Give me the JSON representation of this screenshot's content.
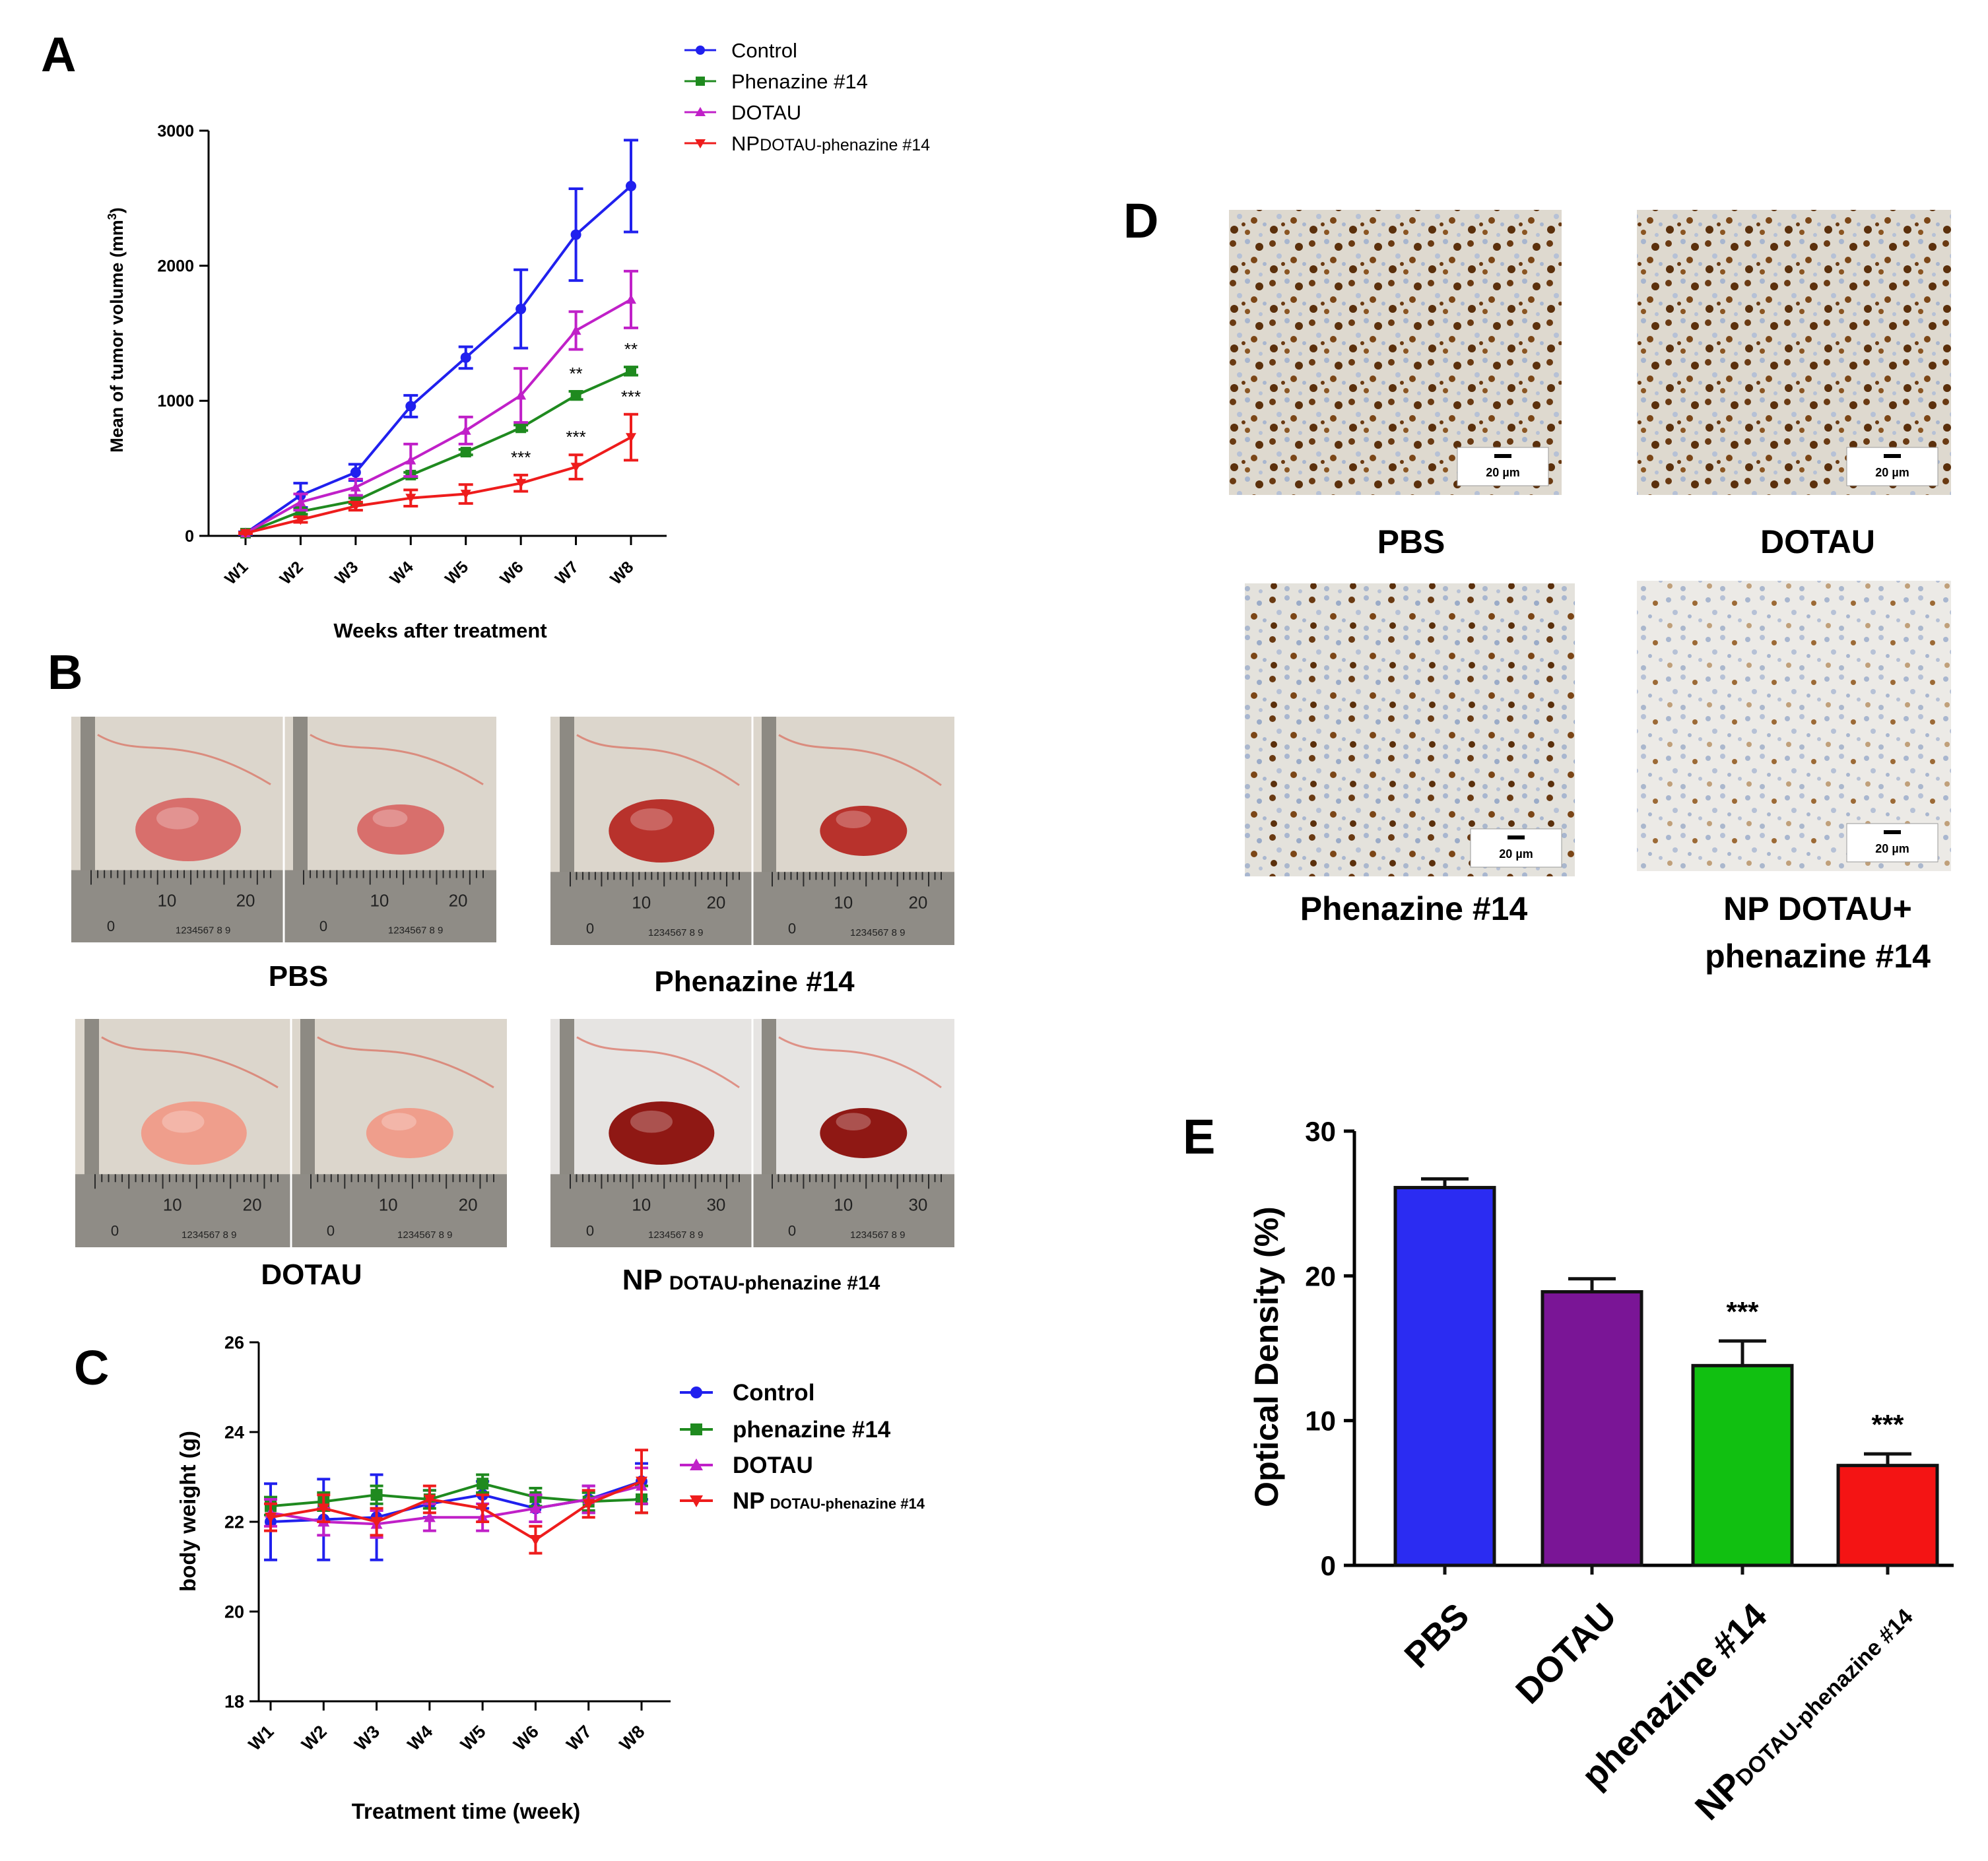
{
  "panel_letters": {
    "a": "A",
    "b": "B",
    "c": "C",
    "d": "D",
    "e": "E"
  },
  "colors": {
    "control": "#2020ee",
    "phenazine": "#1f8a1f",
    "dotau": "#c020c8",
    "np": "#ee1c1c",
    "bar_pbs": "#2b2cf2",
    "bar_dotau": "#7a1596",
    "bar_phen": "#11c011",
    "bar_np": "#f41414"
  },
  "panel_b": {
    "labels": {
      "pbs": "PBS",
      "phen": "Phenazine #14",
      "dotau": "DOTAU",
      "np_main": "NP",
      "np_sub": "DOTAU-phenazine #14"
    },
    "ruler_top": [
      "10",
      "20"
    ],
    "ruler_np": [
      "10",
      "30"
    ],
    "ruler_small": "1234567 8 9",
    "ruler_zero": "0"
  },
  "panel_d": {
    "labels": {
      "pbs": "PBS",
      "dotau": "DOTAU",
      "phen": "Phenazine #14",
      "np_line1": "NP DOTAU+",
      "np_line2": "phenazine #14"
    },
    "scale_bar": "20 µm"
  },
  "chart_data": [
    {
      "id": "A",
      "type": "line",
      "title": "",
      "xlabel": "Weeks after treatment",
      "ylabel_main": "Mean of tumor volume (mm",
      "ylabel_sup": "3",
      "ylabel_tail": ")",
      "categories": [
        "W1",
        "W2",
        "W3",
        "W4",
        "W5",
        "W6",
        "W7",
        "W8"
      ],
      "ylim": [
        0,
        3000
      ],
      "yticks": [
        "0",
        "1000",
        "2000",
        "3000"
      ],
      "legend_position": "top-right",
      "series": [
        {
          "name": "Control",
          "key": "control",
          "marker": "circle",
          "values": [
            20,
            300,
            470,
            960,
            1320,
            1680,
            2230,
            2590
          ],
          "errors": [
            10,
            90,
            60,
            80,
            80,
            290,
            340,
            340
          ]
        },
        {
          "name": "Phenazine #14",
          "key": "phenazine",
          "marker": "square",
          "values": [
            20,
            180,
            260,
            450,
            620,
            800,
            1040,
            1220
          ],
          "errors": [
            5,
            20,
            20,
            20,
            20,
            20,
            30,
            30
          ]
        },
        {
          "name": "DOTAU",
          "key": "dotau",
          "marker": "triangle-up",
          "values": [
            20,
            250,
            360,
            560,
            780,
            1040,
            1520,
            1750
          ],
          "errors": [
            5,
            60,
            60,
            120,
            100,
            200,
            140,
            210
          ]
        },
        {
          "name": "NP",
          "name_sub": "DOTAU-phenazine #14",
          "key": "np",
          "marker": "triangle-down",
          "values": [
            20,
            120,
            220,
            280,
            310,
            390,
            510,
            730
          ],
          "errors": [
            5,
            20,
            30,
            60,
            70,
            60,
            90,
            170
          ]
        }
      ],
      "annotations": [
        {
          "text": "**",
          "series": "phenazine",
          "index": 6
        },
        {
          "text": "**",
          "series": "phenazine",
          "index": 7
        },
        {
          "text": "***",
          "series": "np",
          "index": 5
        },
        {
          "text": "***",
          "series": "np",
          "index": 6
        },
        {
          "text": "***",
          "series": "np",
          "index": 7
        }
      ]
    },
    {
      "id": "C",
      "type": "line",
      "title": "",
      "xlabel": "Treatment time (week)",
      "ylabel": "body weight (g)",
      "categories": [
        "W1",
        "W2",
        "W3",
        "W4",
        "W5",
        "W6",
        "W7",
        "W8"
      ],
      "ylim": [
        18,
        26
      ],
      "yticks": [
        "18",
        "20",
        "22",
        "24",
        "26"
      ],
      "legend_position": "right",
      "series": [
        {
          "name": "Control",
          "key": "control",
          "marker": "circle",
          "values": [
            22.0,
            22.05,
            22.1,
            22.4,
            22.6,
            22.3,
            22.5,
            22.9
          ],
          "errors": [
            0.85,
            0.9,
            0.95,
            0.3,
            0.3,
            0.3,
            0.3,
            0.4
          ]
        },
        {
          "name": "phenazine #14",
          "key": "phenazine",
          "marker": "square",
          "values": [
            22.35,
            22.45,
            22.6,
            22.5,
            22.85,
            22.55,
            22.45,
            22.5
          ],
          "errors": [
            0.2,
            0.2,
            0.2,
            0.2,
            0.2,
            0.2,
            0.2,
            0.3
          ]
        },
        {
          "name": "DOTAU",
          "key": "dotau",
          "marker": "triangle-up",
          "values": [
            22.2,
            22.0,
            21.95,
            22.1,
            22.1,
            22.3,
            22.5,
            22.8
          ],
          "errors": [
            0.3,
            0.3,
            0.3,
            0.3,
            0.3,
            0.3,
            0.3,
            0.4
          ]
        },
        {
          "name": "NP",
          "name_sub": "DOTAU-phenazine #14",
          "key": "np",
          "marker": "triangle-down",
          "values": [
            22.1,
            22.3,
            22.0,
            22.5,
            22.3,
            21.6,
            22.4,
            22.9
          ],
          "errors": [
            0.3,
            0.3,
            0.3,
            0.3,
            0.3,
            0.3,
            0.3,
            0.7
          ]
        }
      ]
    },
    {
      "id": "E",
      "type": "bar",
      "title": "",
      "xlabel": "",
      "ylabel": "Optical Density (%)",
      "categories": [
        "PBS",
        "DOTAU",
        "phenazine #14",
        "NP"
      ],
      "category_subs": [
        "",
        "",
        "",
        "DOTAU-phenazine #14"
      ],
      "values": [
        26.1,
        18.9,
        13.8,
        6.9
      ],
      "errors": [
        0.6,
        0.9,
        1.7,
        0.8
      ],
      "significance": [
        "",
        "",
        "***",
        "***"
      ],
      "ylim": [
        0,
        30
      ],
      "yticks": [
        "0",
        "10",
        "20",
        "30"
      ],
      "legend_position": "none"
    }
  ]
}
